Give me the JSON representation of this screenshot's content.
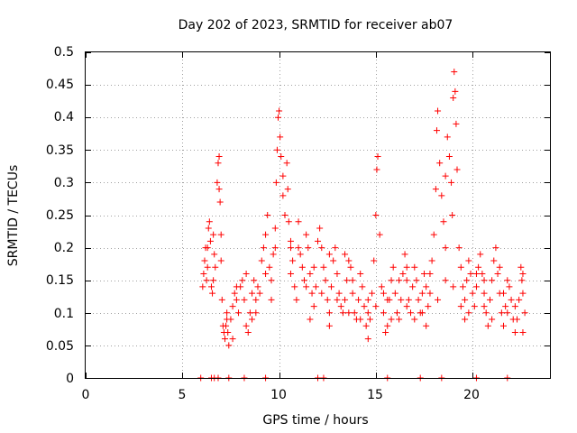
{
  "chart_data": {
    "type": "scatter",
    "title": "Day 202 of 2023, SRMTID for receiver ab07",
    "xlabel": "GPS time / hours",
    "ylabel": "SRMTID / TECUs",
    "xlim": [
      0,
      24
    ],
    "ylim": [
      0,
      0.5
    ],
    "x_ticks": [
      "0",
      "5",
      "10",
      "15",
      "20"
    ],
    "y_ticks": [
      "0",
      "0.05",
      "0.1",
      "0.15",
      "0.2",
      "0.25",
      "0.3",
      "0.35",
      "0.4",
      "0.45",
      "0.5"
    ],
    "grid": true,
    "marker": "+",
    "color": "#ff0000",
    "series": [
      {
        "name": "SRMTID ab07",
        "points": [
          [
            5.95,
            0.0
          ],
          [
            6.5,
            0.0
          ],
          [
            6.65,
            0.0
          ],
          [
            6.85,
            0.0
          ],
          [
            7.4,
            0.0
          ],
          [
            8.2,
            0.0
          ],
          [
            9.3,
            0.0
          ],
          [
            12.0,
            0.0
          ],
          [
            12.3,
            0.0
          ],
          [
            15.6,
            0.0
          ],
          [
            17.3,
            0.0
          ],
          [
            18.4,
            0.0
          ],
          [
            20.2,
            0.0
          ],
          [
            21.8,
            0.0
          ],
          [
            6.05,
            0.14
          ],
          [
            6.1,
            0.16
          ],
          [
            6.15,
            0.18
          ],
          [
            6.2,
            0.2
          ],
          [
            6.25,
            0.15
          ],
          [
            6.3,
            0.17
          ],
          [
            6.35,
            0.23
          ],
          [
            6.4,
            0.24
          ],
          [
            6.45,
            0.21
          ],
          [
            6.5,
            0.14
          ],
          [
            6.55,
            0.13
          ],
          [
            6.6,
            0.15
          ],
          [
            6.65,
            0.19
          ],
          [
            6.7,
            0.17
          ],
          [
            6.8,
            0.3
          ],
          [
            6.85,
            0.33
          ],
          [
            6.9,
            0.34
          ],
          [
            6.95,
            0.27
          ],
          [
            7.0,
            0.22
          ],
          [
            7.0,
            0.18
          ],
          [
            7.05,
            0.12
          ],
          [
            7.1,
            0.08
          ],
          [
            7.15,
            0.07
          ],
          [
            7.2,
            0.06
          ],
          [
            7.25,
            0.08
          ],
          [
            7.3,
            0.1
          ],
          [
            7.35,
            0.07
          ],
          [
            7.4,
            0.05
          ],
          [
            7.5,
            0.09
          ],
          [
            7.6,
            0.11
          ],
          [
            7.7,
            0.13
          ],
          [
            7.8,
            0.12
          ],
          [
            7.9,
            0.1
          ],
          [
            8.0,
            0.14
          ],
          [
            8.1,
            0.15
          ],
          [
            8.2,
            0.12
          ],
          [
            8.3,
            0.08
          ],
          [
            8.4,
            0.07
          ],
          [
            8.5,
            0.1
          ],
          [
            8.6,
            0.13
          ],
          [
            8.7,
            0.15
          ],
          [
            8.8,
            0.12
          ],
          [
            8.9,
            0.14
          ],
          [
            9.0,
            0.13
          ],
          [
            9.1,
            0.18
          ],
          [
            9.2,
            0.2
          ],
          [
            9.3,
            0.22
          ],
          [
            9.4,
            0.25
          ],
          [
            9.5,
            0.17
          ],
          [
            9.6,
            0.15
          ],
          [
            9.7,
            0.19
          ],
          [
            9.8,
            0.23
          ],
          [
            9.85,
            0.3
          ],
          [
            9.9,
            0.35
          ],
          [
            9.95,
            0.4
          ],
          [
            10.0,
            0.41
          ],
          [
            10.05,
            0.37
          ],
          [
            10.1,
            0.34
          ],
          [
            10.2,
            0.28
          ],
          [
            10.3,
            0.25
          ],
          [
            10.4,
            0.33
          ],
          [
            10.45,
            0.29
          ],
          [
            10.5,
            0.24
          ],
          [
            10.6,
            0.21
          ],
          [
            10.7,
            0.18
          ],
          [
            10.8,
            0.14
          ],
          [
            10.9,
            0.12
          ],
          [
            11.0,
            0.2
          ],
          [
            11.1,
            0.19
          ],
          [
            11.2,
            0.17
          ],
          [
            11.3,
            0.15
          ],
          [
            11.4,
            0.22
          ],
          [
            11.5,
            0.2
          ],
          [
            11.6,
            0.16
          ],
          [
            11.7,
            0.13
          ],
          [
            11.8,
            0.11
          ],
          [
            11.9,
            0.14
          ],
          [
            12.0,
            0.21
          ],
          [
            12.1,
            0.23
          ],
          [
            12.2,
            0.2
          ],
          [
            12.3,
            0.17
          ],
          [
            12.4,
            0.15
          ],
          [
            12.5,
            0.12
          ],
          [
            12.6,
            0.1
          ],
          [
            12.7,
            0.14
          ],
          [
            12.8,
            0.18
          ],
          [
            12.9,
            0.2
          ],
          [
            13.0,
            0.16
          ],
          [
            13.1,
            0.13
          ],
          [
            13.2,
            0.11
          ],
          [
            13.3,
            0.1
          ],
          [
            13.4,
            0.12
          ],
          [
            13.5,
            0.15
          ],
          [
            13.6,
            0.18
          ],
          [
            13.7,
            0.17
          ],
          [
            13.8,
            0.13
          ],
          [
            13.9,
            0.1
          ],
          [
            14.0,
            0.09
          ],
          [
            14.1,
            0.12
          ],
          [
            14.2,
            0.16
          ],
          [
            14.3,
            0.14
          ],
          [
            14.4,
            0.11
          ],
          [
            14.5,
            0.08
          ],
          [
            14.6,
            0.06
          ],
          [
            14.7,
            0.09
          ],
          [
            14.8,
            0.13
          ],
          [
            14.9,
            0.18
          ],
          [
            15.0,
            0.25
          ],
          [
            15.05,
            0.32
          ],
          [
            15.1,
            0.34
          ],
          [
            15.2,
            0.22
          ],
          [
            15.3,
            0.14
          ],
          [
            15.4,
            0.1
          ],
          [
            15.5,
            0.07
          ],
          [
            15.6,
            0.08
          ],
          [
            15.7,
            0.12
          ],
          [
            15.8,
            0.15
          ],
          [
            15.9,
            0.17
          ],
          [
            16.0,
            0.13
          ],
          [
            16.1,
            0.1
          ],
          [
            16.2,
            0.09
          ],
          [
            16.3,
            0.12
          ],
          [
            16.4,
            0.16
          ],
          [
            16.5,
            0.19
          ],
          [
            16.6,
            0.15
          ],
          [
            16.7,
            0.12
          ],
          [
            16.8,
            0.1
          ],
          [
            16.9,
            0.14
          ],
          [
            17.0,
            0.17
          ],
          [
            17.1,
            0.15
          ],
          [
            17.2,
            0.12
          ],
          [
            17.3,
            0.1
          ],
          [
            17.4,
            0.13
          ],
          [
            17.5,
            0.16
          ],
          [
            17.6,
            0.14
          ],
          [
            17.7,
            0.11
          ],
          [
            17.8,
            0.13
          ],
          [
            17.9,
            0.18
          ],
          [
            18.0,
            0.22
          ],
          [
            18.1,
            0.29
          ],
          [
            18.15,
            0.38
          ],
          [
            18.2,
            0.41
          ],
          [
            18.3,
            0.33
          ],
          [
            18.4,
            0.28
          ],
          [
            18.5,
            0.24
          ],
          [
            18.6,
            0.31
          ],
          [
            18.7,
            0.37
          ],
          [
            18.8,
            0.34
          ],
          [
            18.9,
            0.3
          ],
          [
            18.95,
            0.25
          ],
          [
            19.0,
            0.43
          ],
          [
            19.05,
            0.47
          ],
          [
            19.1,
            0.44
          ],
          [
            19.15,
            0.39
          ],
          [
            19.2,
            0.32
          ],
          [
            19.3,
            0.2
          ],
          [
            19.4,
            0.17
          ],
          [
            19.5,
            0.14
          ],
          [
            19.6,
            0.12
          ],
          [
            19.7,
            0.15
          ],
          [
            19.8,
            0.18
          ],
          [
            19.9,
            0.16
          ],
          [
            20.0,
            0.13
          ],
          [
            20.1,
            0.11
          ],
          [
            20.2,
            0.14
          ],
          [
            20.3,
            0.17
          ],
          [
            20.4,
            0.19
          ],
          [
            20.5,
            0.16
          ],
          [
            20.6,
            0.13
          ],
          [
            20.7,
            0.1
          ],
          [
            20.8,
            0.08
          ],
          [
            20.9,
            0.12
          ],
          [
            21.0,
            0.15
          ],
          [
            21.1,
            0.18
          ],
          [
            21.2,
            0.2
          ],
          [
            21.3,
            0.16
          ],
          [
            21.4,
            0.13
          ],
          [
            21.5,
            0.1
          ],
          [
            21.6,
            0.08
          ],
          [
            21.7,
            0.11
          ],
          [
            21.8,
            0.15
          ],
          [
            21.9,
            0.14
          ],
          [
            22.0,
            0.12
          ],
          [
            22.1,
            0.09
          ],
          [
            22.2,
            0.07
          ],
          [
            22.3,
            0.09
          ],
          [
            22.4,
            0.12
          ],
          [
            22.5,
            0.17
          ],
          [
            22.55,
            0.15
          ],
          [
            22.6,
            0.13
          ],
          [
            22.7,
            0.1
          ],
          [
            6.3,
            0.2
          ],
          [
            6.6,
            0.22
          ],
          [
            6.9,
            0.29
          ],
          [
            7.3,
            0.09
          ],
          [
            7.8,
            0.14
          ],
          [
            8.3,
            0.16
          ],
          [
            8.8,
            0.1
          ],
          [
            9.3,
            0.16
          ],
          [
            9.8,
            0.2
          ],
          [
            10.2,
            0.31
          ],
          [
            10.6,
            0.16
          ],
          [
            11.0,
            0.24
          ],
          [
            11.4,
            0.14
          ],
          [
            11.8,
            0.17
          ],
          [
            12.2,
            0.13
          ],
          [
            12.6,
            0.19
          ],
          [
            13.0,
            0.12
          ],
          [
            13.4,
            0.19
          ],
          [
            13.8,
            0.15
          ],
          [
            14.2,
            0.09
          ],
          [
            14.6,
            0.12
          ],
          [
            15.0,
            0.11
          ],
          [
            15.4,
            0.13
          ],
          [
            15.8,
            0.09
          ],
          [
            16.2,
            0.15
          ],
          [
            16.6,
            0.11
          ],
          [
            17.0,
            0.09
          ],
          [
            17.4,
            0.1
          ],
          [
            17.8,
            0.16
          ],
          [
            18.2,
            0.12
          ],
          [
            18.6,
            0.15
          ],
          [
            19.0,
            0.14
          ],
          [
            19.4,
            0.11
          ],
          [
            19.8,
            0.1
          ],
          [
            20.2,
            0.16
          ],
          [
            20.6,
            0.11
          ],
          [
            21.0,
            0.09
          ],
          [
            21.4,
            0.17
          ],
          [
            21.8,
            0.1
          ],
          [
            22.2,
            0.11
          ],
          [
            22.6,
            0.16
          ],
          [
            7.6,
            0.06
          ],
          [
            8.6,
            0.09
          ],
          [
            9.6,
            0.12
          ],
          [
            10.6,
            0.2
          ],
          [
            11.6,
            0.09
          ],
          [
            12.6,
            0.08
          ],
          [
            13.6,
            0.1
          ],
          [
            14.6,
            0.1
          ],
          [
            15.6,
            0.12
          ],
          [
            16.6,
            0.17
          ],
          [
            17.6,
            0.08
          ],
          [
            18.6,
            0.2
          ],
          [
            19.6,
            0.09
          ],
          [
            20.6,
            0.15
          ],
          [
            21.6,
            0.13
          ],
          [
            22.6,
            0.07
          ]
        ]
      }
    ]
  }
}
